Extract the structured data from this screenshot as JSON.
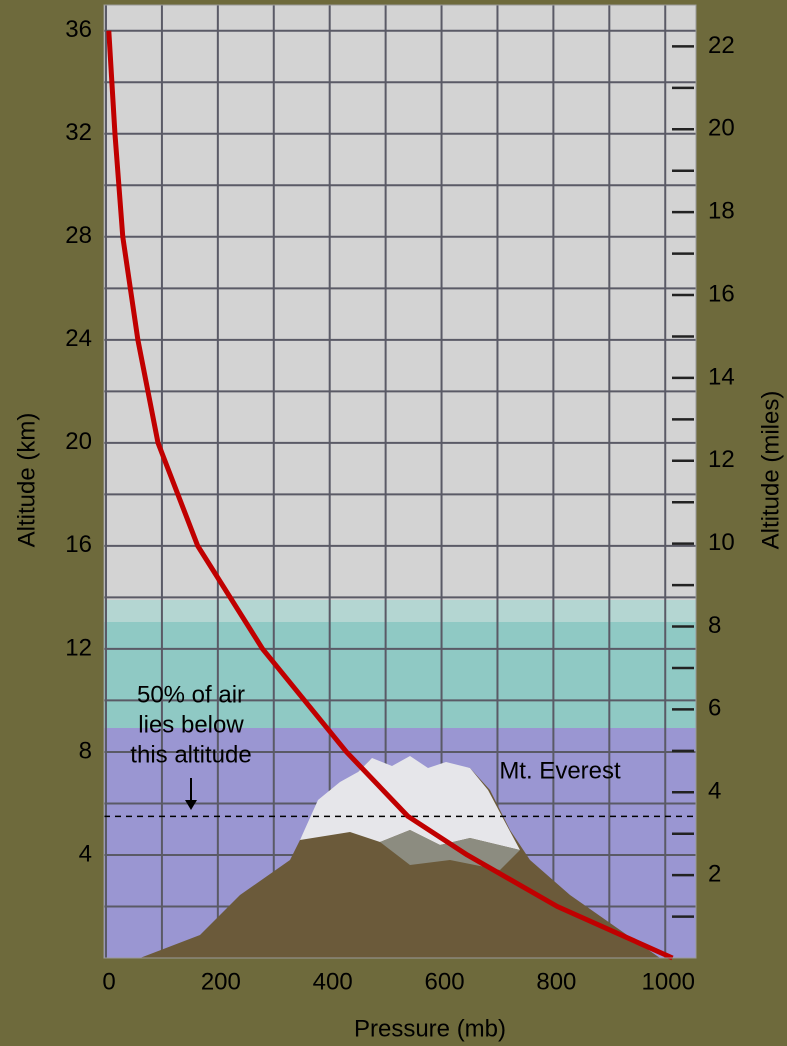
{
  "chart_data": {
    "type": "line",
    "x_label": "Pressure (mb)",
    "y_label": "Altitude (km)",
    "y2_label": "Altitude (miles)",
    "x": [
      5,
      16,
      30,
      57,
      93,
      164,
      280,
      430,
      540,
      646,
      807,
      1013
    ],
    "values": [
      36,
      32,
      28,
      24,
      20,
      16,
      12,
      8,
      5.5,
      4,
      2,
      0
    ],
    "color": "#c00000",
    "xlim": [
      0,
      1055
    ],
    "xticks": [
      0,
      200,
      400,
      600,
      800,
      1000
    ],
    "xminor": [
      100,
      300,
      500,
      700,
      900
    ],
    "ylim": [
      0,
      37
    ],
    "yticks": [
      4,
      8,
      12,
      16,
      20,
      24,
      28,
      32,
      36
    ],
    "yminor": [
      2,
      6,
      10,
      14,
      18,
      22,
      26,
      30,
      34
    ],
    "y2lim": [
      0,
      23
    ],
    "y2ticks": [
      2,
      4,
      6,
      8,
      10,
      12,
      14,
      16,
      18,
      20,
      22
    ],
    "y2minor": [
      1,
      3,
      5,
      7,
      9,
      11,
      13,
      15,
      17,
      19,
      21
    ],
    "grid": true,
    "reference_line": 5.5,
    "annotations": [
      {
        "lines": [
          "50% of air",
          "lies below",
          "this altitude"
        ]
      },
      {
        "lines": [
          "Mt. Everest"
        ]
      }
    ]
  }
}
